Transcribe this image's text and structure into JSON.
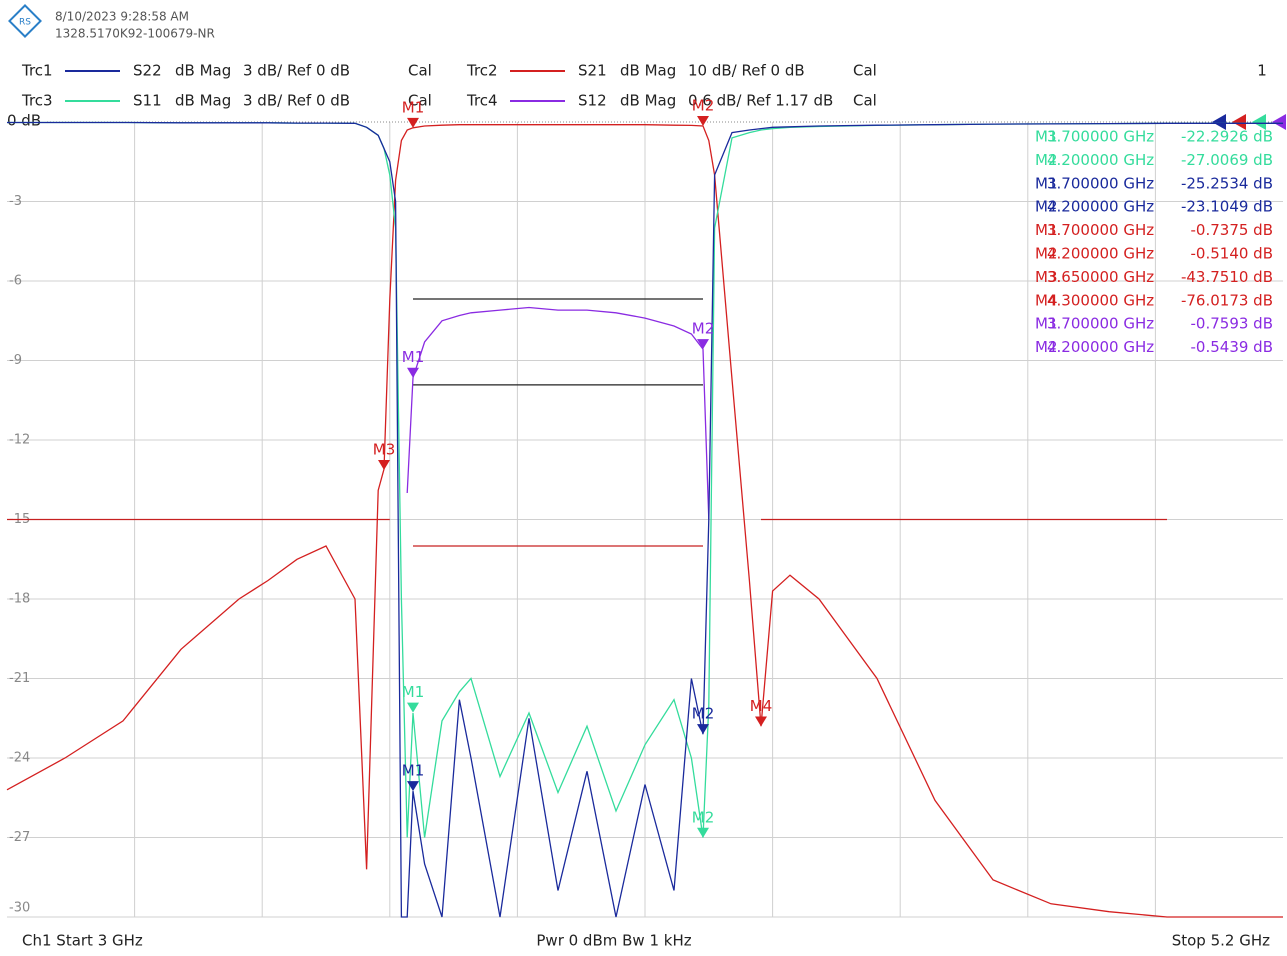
{
  "header": {
    "date": "8/10/2023 9:28:58 AM",
    "serial": "1328.5170K92-100679-NR",
    "page": "1"
  },
  "footer": {
    "start": "Ch1  Start  3 GHz",
    "power": "Pwr  0 dBm  Bw  1 kHz",
    "stop": "Stop  5.2 GHz"
  },
  "chart_data": {
    "type": "line",
    "xlim": [
      3,
      5.2
    ],
    "ylim": [
      -30,
      0
    ],
    "yticks": [
      {
        "value": 0,
        "label": "0 dB"
      },
      -3,
      -6,
      -9,
      -12,
      -15,
      -18,
      -21,
      -24,
      -27,
      -30
    ],
    "grid": true,
    "x": [
      3.0,
      3.1,
      3.2,
      3.3,
      3.4,
      3.45,
      3.5,
      3.55,
      3.6,
      3.62,
      3.64,
      3.65,
      3.66,
      3.67,
      3.68,
      3.69,
      3.7,
      3.72,
      3.75,
      3.78,
      3.8,
      3.85,
      3.9,
      3.95,
      4.0,
      4.05,
      4.1,
      4.15,
      4.18,
      4.2,
      4.21,
      4.22,
      4.25,
      4.28,
      4.3,
      4.32,
      4.35,
      4.4,
      4.5,
      4.6,
      4.7,
      4.8,
      4.9,
      5.0,
      5.1,
      5.2
    ],
    "series": [
      {
        "name": "Trc1",
        "param": "S22",
        "format": "dB Mag",
        "scale": "3 dB/ Ref 0 dB",
        "cal": "Cal",
        "color": "#1a2a9c",
        "values": [
          -0.02,
          -0.02,
          -0.02,
          -0.03,
          -0.03,
          -0.03,
          -0.04,
          -0.04,
          -0.05,
          -0.2,
          -0.5,
          -1,
          -1.5,
          -3,
          -30,
          -30,
          -25.25,
          -28,
          -30,
          -21.8,
          -24,
          -30,
          -22.5,
          -29,
          -24.5,
          -30,
          -25,
          -29,
          -21,
          -23.1,
          -15,
          -2,
          -0.4,
          -0.3,
          -0.25,
          -0.2,
          -0.18,
          -0.15,
          -0.12,
          -0.1,
          -0.08,
          -0.07,
          -0.06,
          -0.05,
          -0.05,
          -0.05
        ]
      },
      {
        "name": "Trc2",
        "param": "S21",
        "format": "dB Mag",
        "scale": "10 dB/ Ref 0 dB",
        "cal": "Cal",
        "color": "#d42020",
        "values": [
          -25.2,
          -24,
          -22.6,
          -19.9,
          -18,
          -17.3,
          -16.5,
          -16,
          -18,
          -28.2,
          -13.9,
          -13.1,
          -6.7,
          -2.2,
          -0.7,
          -0.3,
          -0.22,
          -0.15,
          -0.12,
          -0.1,
          -0.1,
          -0.1,
          -0.1,
          -0.1,
          -0.1,
          -0.1,
          -0.1,
          -0.12,
          -0.13,
          -0.15,
          -0.7,
          -2,
          -9.7,
          -17.3,
          -22.8,
          -17.7,
          -17.1,
          -18,
          -21,
          -25.6,
          -28.6,
          -29.5,
          -29.8,
          -30,
          -30,
          -30
        ]
      },
      {
        "name": "Trc3",
        "param": "S11",
        "format": "dB Mag",
        "scale": "3 dB/ Ref 0 dB",
        "cal": "Cal",
        "color": "#34dc9c",
        "values": [
          -0.02,
          -0.02,
          -0.02,
          -0.03,
          -0.03,
          -0.03,
          -0.04,
          -0.04,
          -0.05,
          -0.2,
          -0.5,
          -1,
          -2,
          -4,
          -18,
          -27,
          -22.3,
          -27,
          -22.6,
          -21.5,
          -21,
          -24.7,
          -22.3,
          -25.3,
          -22.8,
          -26,
          -23.5,
          -21.8,
          -24,
          -27,
          -22,
          -4,
          -0.6,
          -0.4,
          -0.3,
          -0.25,
          -0.2,
          -0.17,
          -0.13,
          -0.1,
          -0.08,
          -0.07,
          -0.06,
          -0.05,
          -0.05,
          -0.05
        ]
      },
      {
        "name": "Trc4",
        "param": "S12",
        "format": "dB Mag",
        "scale": "0.6 dB/ Ref 1.17 dB",
        "cal": "Cal",
        "color": "#8a2be2",
        "values": [
          null,
          null,
          null,
          null,
          null,
          null,
          null,
          null,
          null,
          null,
          null,
          null,
          null,
          null,
          null,
          -14,
          -9.65,
          -8.3,
          -7.5,
          -7.3,
          -7.2,
          -7.1,
          -7.0,
          -7.1,
          -7.1,
          -7.2,
          -7.4,
          -7.7,
          -8.0,
          -8.57,
          -15,
          null,
          null,
          null,
          null,
          null,
          null,
          null,
          null,
          null,
          null,
          null,
          null,
          null,
          null,
          null
        ]
      }
    ],
    "limit_lines": [
      {
        "color": "#c62020",
        "x": [
          3.0,
          3.66
        ],
        "y": -15
      },
      {
        "color": "#c62020",
        "x": [
          4.3,
          5.0
        ],
        "y": -15
      },
      {
        "color": "#c62020",
        "x": [
          3.7,
          4.2
        ],
        "y": -16
      },
      {
        "color": "#222222",
        "x": [
          3.7,
          4.2
        ],
        "y": -6.68
      },
      {
        "color": "#222222",
        "x": [
          3.7,
          4.2
        ],
        "y": -9.92
      }
    ],
    "markers": [
      {
        "series": 2,
        "label": "M1",
        "x": 3.7,
        "y": -22.29,
        "freq": "3.700000 GHz",
        "readout": "-22.2926 dB"
      },
      {
        "series": 2,
        "label": "M2",
        "x": 4.2,
        "y": -27.01,
        "freq": "4.200000 GHz",
        "readout": "-27.0069 dB"
      },
      {
        "series": 0,
        "label": "M1",
        "x": 3.7,
        "y": -25.25,
        "freq": "3.700000 GHz",
        "readout": "-25.2534 dB"
      },
      {
        "series": 0,
        "label": "M2",
        "x": 4.2,
        "y": -23.1,
        "freq": "4.200000 GHz",
        "readout": "-23.1049 dB"
      },
      {
        "series": 1,
        "label": "M1",
        "x": 3.7,
        "y": -0.22,
        "freq": "3.700000 GHz",
        "readout": "-0.7375 dB"
      },
      {
        "series": 1,
        "label": "M2",
        "x": 4.2,
        "y": -0.15,
        "freq": "4.200000 GHz",
        "readout": "-0.5140 dB"
      },
      {
        "series": 1,
        "label": "M3",
        "x": 3.65,
        "y": -13.13,
        "freq": "3.650000 GHz",
        "readout": "-43.7510 dB"
      },
      {
        "series": 1,
        "label": "M4",
        "x": 4.3,
        "y": -22.81,
        "freq": "4.300000 GHz",
        "readout": "-76.0173 dB"
      },
      {
        "series": 3,
        "label": "M1",
        "x": 3.7,
        "y": -9.65,
        "freq": "3.700000 GHz",
        "readout": "-0.7593 dB"
      },
      {
        "series": 3,
        "label": "M2",
        "x": 4.2,
        "y": -8.57,
        "freq": "4.200000 GHz",
        "readout": "-0.5439 dB"
      }
    ]
  }
}
